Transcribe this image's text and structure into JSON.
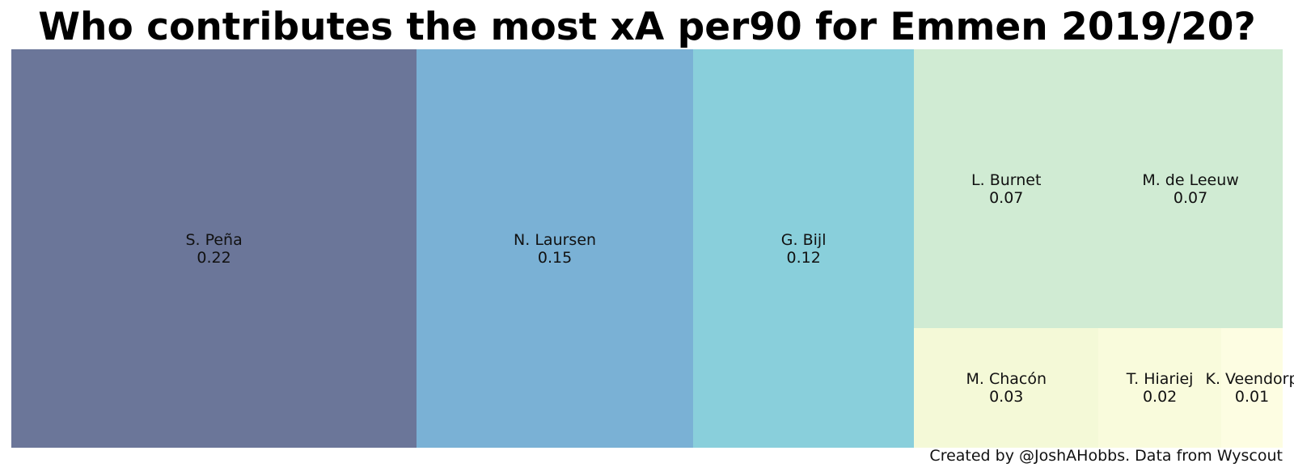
{
  "title": "Who contributes the most xA per90 for Emmen 2019/20?",
  "credit": "Created by @JoshAHobbs. Data from Wyscout",
  "chart_data": {
    "type": "treemap",
    "title": "Who contributes the most xA per90 for Emmen 2019/20?",
    "items": [
      {
        "name": "S. Peña",
        "value": 0.22,
        "label": "0.22",
        "color": "#6b7699"
      },
      {
        "name": "N. Laursen",
        "value": 0.15,
        "label": "0.15",
        "color": "#7ab1d5"
      },
      {
        "name": "G. Bijl",
        "value": 0.12,
        "label": "0.12",
        "color": "#89cfdb"
      },
      {
        "name": "L. Burnet",
        "value": 0.07,
        "label": "0.07",
        "color": "#d0ebd3"
      },
      {
        "name": "M. de Leeuw",
        "value": 0.07,
        "label": "0.07",
        "color": "#d0ebd3"
      },
      {
        "name": "M. Chacón",
        "value": 0.03,
        "label": "0.03",
        "color": "#f4f9d7"
      },
      {
        "name": "T. Hiariej",
        "value": 0.02,
        "label": "0.02",
        "color": "#f9fbdc"
      },
      {
        "name": "K. Veendorp",
        "value": 0.01,
        "label": "0.01",
        "color": "#fdfde2"
      }
    ]
  }
}
